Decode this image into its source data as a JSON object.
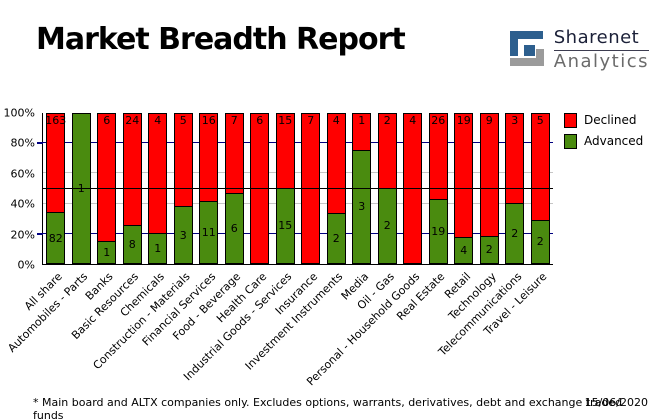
{
  "header": {
    "title": "Market Breadth Report",
    "logo": {
      "name": "Sharenet Analytics",
      "line1": "Sharenet",
      "line2": "Analytics"
    }
  },
  "chart_data": {
    "type": "bar",
    "stacked": true,
    "percent_axis": true,
    "title": "Market Breadth Report",
    "categories": [
      "All share",
      "Automobiles - Parts",
      "Banks",
      "Basic Resources",
      "Chemicals",
      "Construction - Materials",
      "Financial Services",
      "Food - Beverage",
      "Health Care",
      "Industrial Goods - Services",
      "Insurance",
      "Investment Instruments",
      "Media",
      "Oil - Gas",
      "Personal - Household Goods",
      "Real Estate",
      "Retail",
      "Technology",
      "Telecommunications",
      "Travel - Leisure"
    ],
    "series": [
      {
        "name": "Declined",
        "color": "#ff0000",
        "values": [
          163,
          0,
          6,
          24,
          4,
          5,
          16,
          7,
          6,
          15,
          7,
          4,
          1,
          2,
          4,
          26,
          19,
          9,
          3,
          5
        ]
      },
      {
        "name": "Advanced",
        "color": "#4a8b0f",
        "values": [
          82,
          1,
          1,
          8,
          1,
          3,
          11,
          6,
          0,
          15,
          0,
          2,
          3,
          2,
          0,
          19,
          4,
          2,
          2,
          2
        ]
      }
    ],
    "ylabel": "",
    "xlabel": "",
    "ylim": [
      0,
      100
    ],
    "yticks": [
      "0%",
      "20%",
      "40%",
      "60%",
      "80%",
      "100%"
    ],
    "grid": true,
    "gridlines": [
      {
        "pct": 20,
        "color": "#000080"
      },
      {
        "pct": 40,
        "color": "#c6c6c6"
      },
      {
        "pct": 60,
        "color": "#c6c6c6"
      },
      {
        "pct": 80,
        "color": "#000080"
      }
    ],
    "reference_line": {
      "pct": 50,
      "color": "#000000"
    },
    "legend_position": "top-right",
    "bar_labels": "raw counts shown inside each segment"
  },
  "legend": {
    "items": [
      {
        "label": "Declined",
        "color": "#ff0000"
      },
      {
        "label": "Advanced",
        "color": "#4a8b0f"
      }
    ]
  },
  "footer": {
    "note": "* Main board and ALTX companies only. Excludes options, warrants, derivatives, debt and exchange traded funds",
    "date": "15/06/2020"
  }
}
